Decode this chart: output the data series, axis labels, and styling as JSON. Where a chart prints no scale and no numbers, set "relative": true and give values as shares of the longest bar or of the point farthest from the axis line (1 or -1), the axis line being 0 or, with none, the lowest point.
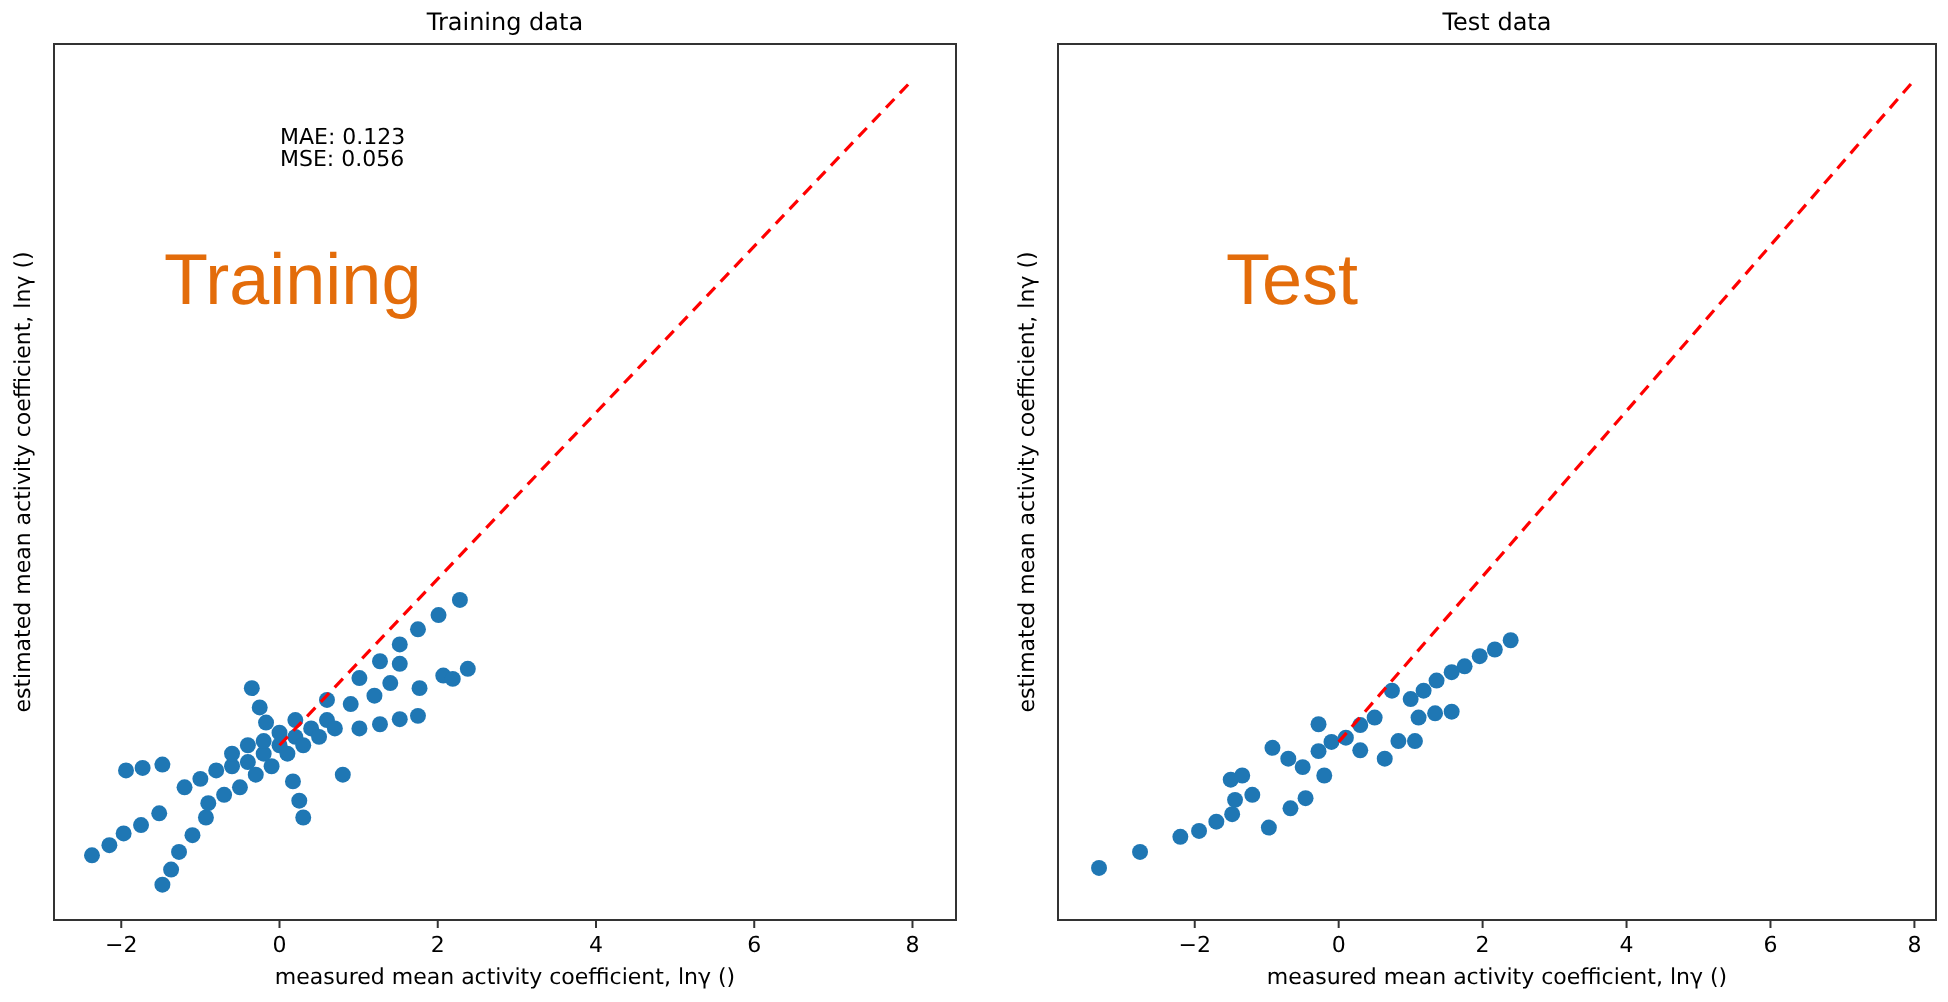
{
  "chart_data": [
    {
      "type": "scatter",
      "title": "Training data",
      "xlabel": "measured mean activity coefficient, lnγ ()",
      "ylabel": "estimated mean activity coefficient, lnγ ()",
      "annotations": [
        "MAE: 0.123",
        "MSE: 0.056",
        "Training"
      ],
      "relative": true,
      "xlim": [
        -2.85,
        8.55
      ],
      "xticks": [
        -2,
        0,
        2,
        4,
        6,
        8
      ],
      "series": [
        {
          "color": "#1f77b4",
          "marker": "circle",
          "x": [
            -2.37,
            -2.15,
            -1.97,
            -1.75,
            -1.52,
            -1.94,
            -1.73,
            -1.48,
            -1.48,
            -1.37,
            -1.27,
            -1.1,
            -0.93,
            -1.2,
            -1.0,
            -0.8,
            -0.6,
            -0.4,
            -0.2,
            0.0,
            0.2,
            0.4,
            0.6,
            -0.9,
            -0.7,
            -0.5,
            -0.3,
            -0.1,
            0.1,
            0.3,
            0.5,
            0.7,
            -0.6,
            -0.4,
            -0.2,
            0.0,
            0.2,
            -0.35,
            -0.25,
            -0.17,
            0.3,
            0.25,
            0.17,
            2.28,
            2.01,
            1.75,
            1.52,
            1.27,
            1.01,
            2.38,
            2.07,
            2.19,
            1.75,
            1.52,
            1.27,
            1.01,
            1.77,
            1.52,
            0.8,
            0.9,
            1.2,
            1.4,
            0.6
          ],
          "values": [
            0.077,
            0.089,
            0.103,
            0.113,
            0.127,
            0.178,
            0.181,
            0.185,
            0.042,
            0.06,
            0.081,
            0.101,
            0.122,
            0.158,
            0.168,
            0.178,
            0.183,
            0.188,
            0.198,
            0.208,
            0.218,
            0.228,
            0.238,
            0.139,
            0.149,
            0.158,
            0.173,
            0.183,
            0.198,
            0.208,
            0.218,
            0.228,
            0.198,
            0.208,
            0.213,
            0.223,
            0.238,
            0.276,
            0.253,
            0.235,
            0.122,
            0.142,
            0.165,
            0.381,
            0.363,
            0.346,
            0.328,
            0.308,
            0.288,
            0.299,
            0.291,
            0.287,
            0.243,
            0.239,
            0.233,
            0.228,
            0.276,
            0.305,
            0.173,
            0.257,
            0.267,
            0.282,
            0.262
          ]
        },
        {
          "type": "line",
          "color": "#ff0000",
          "marker": "none",
          "line_style": "dashed",
          "x": [
            0,
            8
          ],
          "values": [
            0.208,
            1
          ]
        }
      ]
    },
    {
      "type": "scatter",
      "title": "Test data",
      "xlabel": "measured mean activity coefficient, lnγ ()",
      "ylabel": "estimated mean activity coefficient, lnγ ()",
      "annotations": [
        "Test"
      ],
      "relative": true,
      "xlim": [
        -3.9,
        8.3
      ],
      "xticks": [
        -2,
        0,
        2,
        4,
        6,
        8
      ],
      "series": [
        {
          "color": "#1f77b4",
          "marker": "circle",
          "x": [
            -3.33,
            -2.76,
            -2.2,
            -1.94,
            -1.7,
            -1.48,
            -0.97,
            -1.5,
            -1.34,
            -1.44,
            -1.2,
            -0.67,
            -0.46,
            -0.92,
            -0.28,
            -0.28,
            -0.5,
            -0.1,
            0.1,
            -0.2,
            0.3,
            -0.7,
            2.39,
            2.17,
            1.96,
            1.75,
            1.57,
            1.36,
            1.18,
            1.0,
            1.57,
            1.34,
            1.11,
            1.06,
            0.83,
            0.64,
            0.74,
            0.5,
            0.3
          ],
          "values": [
            0.062,
            0.081,
            0.099,
            0.106,
            0.117,
            0.126,
            0.11,
            0.167,
            0.172,
            0.143,
            0.149,
            0.133,
            0.145,
            0.205,
            0.201,
            0.233,
            0.182,
            0.212,
            0.217,
            0.172,
            0.232,
            0.192,
            0.333,
            0.322,
            0.314,
            0.302,
            0.295,
            0.285,
            0.273,
            0.263,
            0.248,
            0.246,
            0.241,
            0.213,
            0.213,
            0.192,
            0.273,
            0.241,
            0.202
          ]
        },
        {
          "type": "line",
          "color": "#ff0000",
          "marker": "none",
          "line_style": "dashed",
          "x": [
            0,
            8
          ],
          "values": [
            0.212,
            1
          ]
        }
      ]
    }
  ]
}
